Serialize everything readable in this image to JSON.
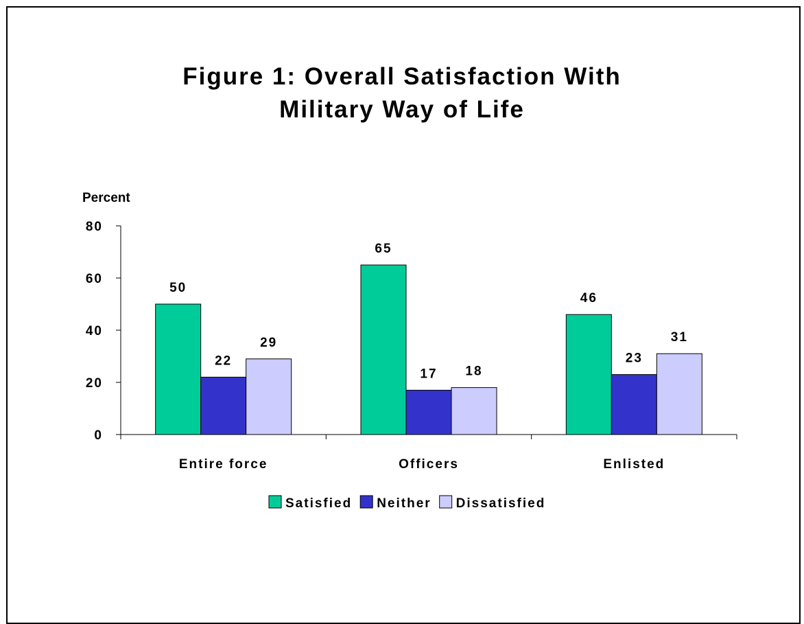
{
  "chart_data": {
    "type": "bar",
    "title_lines": [
      "Figure 1: Overall Satisfaction With",
      "Military Way of Life"
    ],
    "ylabel": "Percent",
    "xlabel": "",
    "ylim": [
      0,
      80
    ],
    "yticks": [
      "0",
      "20",
      "40",
      "60",
      "80"
    ],
    "categories": [
      "Entire force",
      "Officers",
      "Enlisted"
    ],
    "series": [
      {
        "name": "Satisfied",
        "color": "#00cc99",
        "values": [
          50,
          65,
          46
        ]
      },
      {
        "name": "Neither",
        "color": "#3333cc",
        "values": [
          22,
          17,
          23
        ]
      },
      {
        "name": "Dissatisfied",
        "color": "#ccccff",
        "values": [
          29,
          18,
          31
        ]
      }
    ],
    "legend_position": "bottom",
    "grid": false
  }
}
